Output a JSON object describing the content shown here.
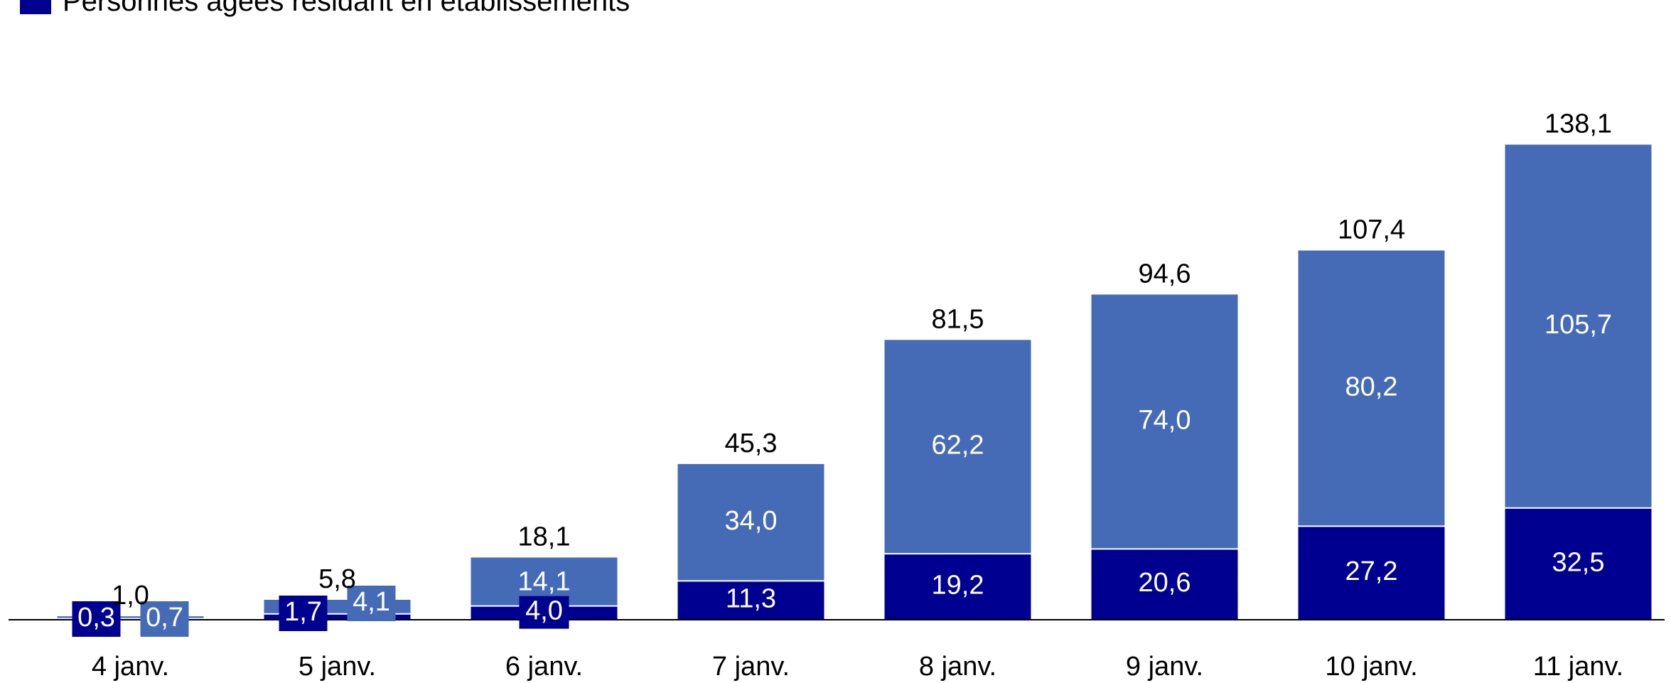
{
  "legend": {
    "items": [
      {
        "label": "Personnes âgées résidant en établissements",
        "color": "#000090"
      }
    ]
  },
  "chart_data": {
    "type": "bar",
    "stacked": true,
    "categories": [
      "4 janv.",
      "5 janv.",
      "6 janv.",
      "7 janv.",
      "8 janv.",
      "9 janv.",
      "10 janv.",
      "11 janv."
    ],
    "series": [
      {
        "name": "Personnes âgées résidant en établissements",
        "color": "#000090",
        "values": [
          0.3,
          1.7,
          4.0,
          11.3,
          19.2,
          20.6,
          27.2,
          32.5
        ],
        "labels": [
          "0,3",
          "1,7",
          "4,0",
          "11,3",
          "19,2",
          "20,6",
          "27,2",
          "32,5"
        ]
      },
      {
        "color": "#466BB6",
        "values": [
          0.7,
          4.1,
          14.1,
          34.0,
          62.2,
          74.0,
          80.2,
          105.7
        ],
        "labels": [
          "0,7",
          "4,1",
          "14,1",
          "34,0",
          "62,2",
          "74,0",
          "80,2",
          "105,7"
        ]
      }
    ],
    "totals": [
      1.0,
      5.8,
      18.1,
      45.3,
      81.5,
      94.6,
      107.4,
      138.1
    ],
    "total_labels": [
      "1,0",
      "5,8",
      "18,1",
      "45,3",
      "81,5",
      "94,6",
      "107,4",
      "138,1"
    ],
    "ylim": [
      0,
      140
    ],
    "grid": false,
    "legend_position": "top-left"
  }
}
